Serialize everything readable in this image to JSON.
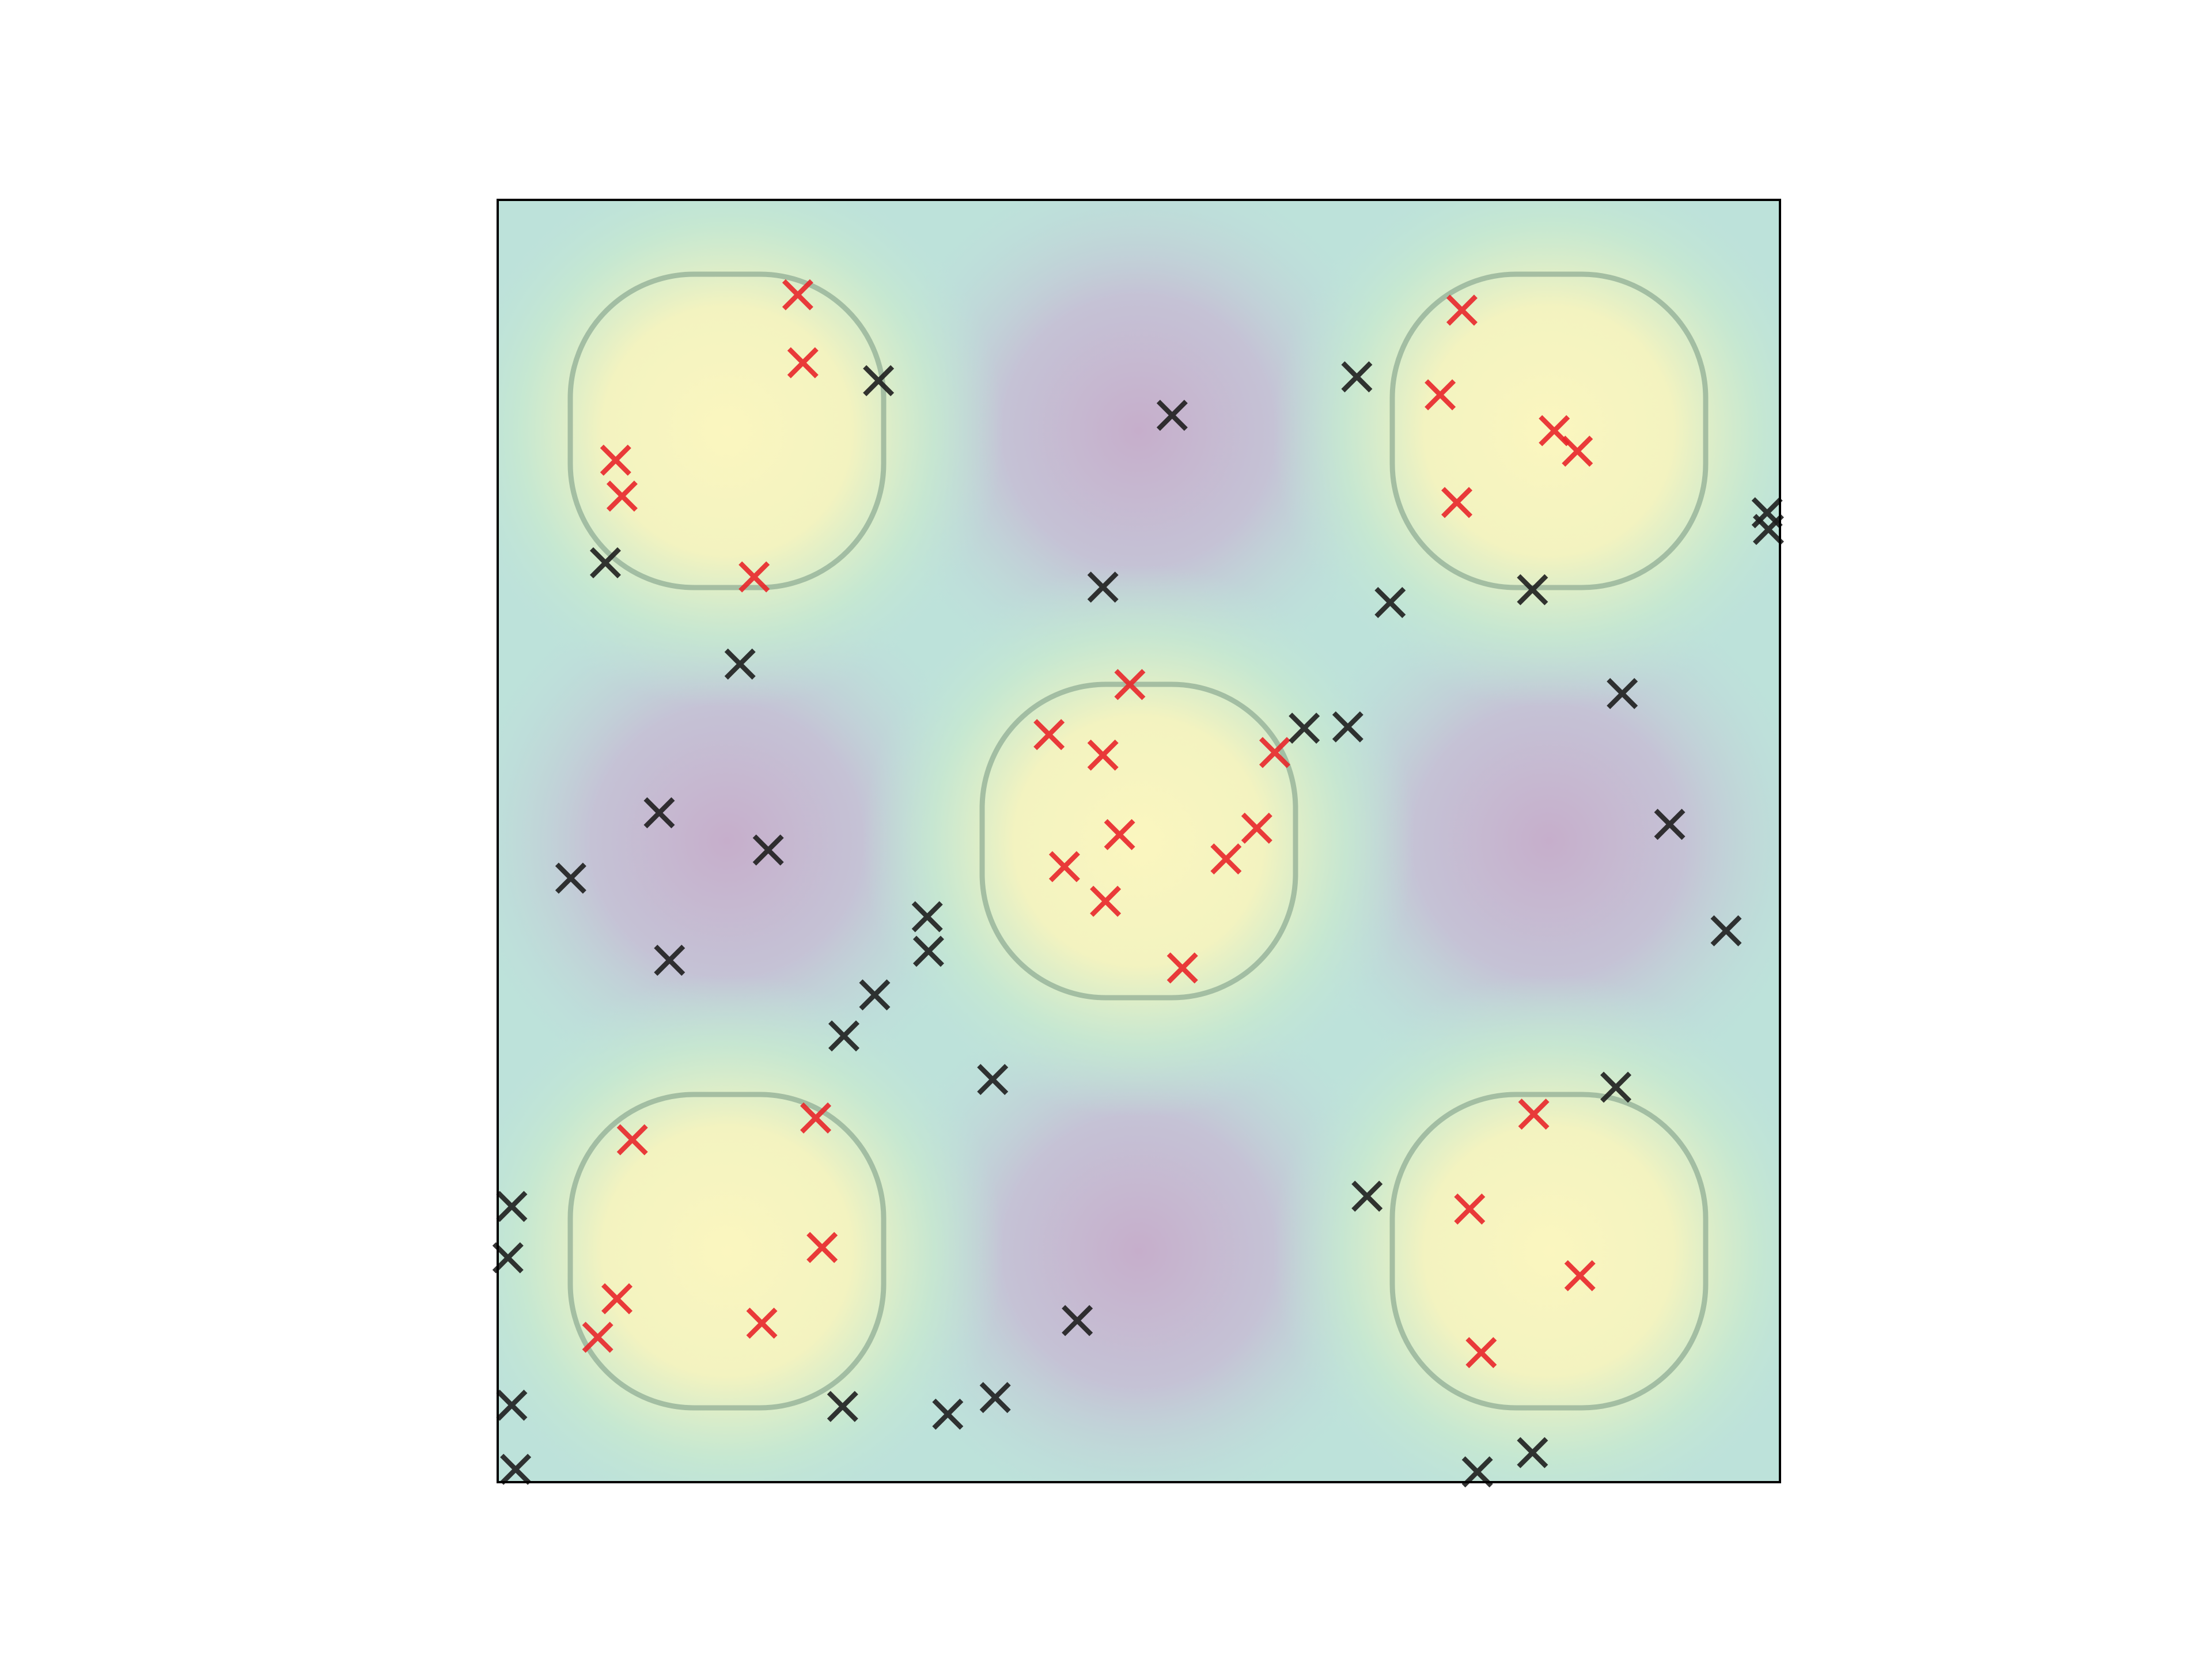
{
  "chart_data": {
    "type": "scatter",
    "xlim": [
      0,
      1
    ],
    "ylim": [
      0,
      1
    ],
    "series": [
      {
        "color": "#e8262a",
        "x": [
          0.234,
          0.238,
          0.092,
          0.097,
          0.2,
          0.752,
          0.735,
          0.824,
          0.842,
          0.748,
          0.493,
          0.43,
          0.472,
          0.606,
          0.485,
          0.592,
          0.442,
          0.568,
          0.474,
          0.534,
          0.105,
          0.248,
          0.253,
          0.093,
          0.078,
          0.206,
          0.808,
          0.758,
          0.844,
          0.767
        ],
        "values": [
          0.926,
          0.873,
          0.797,
          0.769,
          0.706,
          0.914,
          0.848,
          0.82,
          0.804,
          0.764,
          0.622,
          0.583,
          0.567,
          0.569,
          0.505,
          0.51,
          0.48,
          0.486,
          0.453,
          0.401,
          0.267,
          0.284,
          0.183,
          0.143,
          0.113,
          0.124,
          0.287,
          0.213,
          0.161,
          0.101
        ]
      },
      {
        "color": "#1e1e1e",
        "x": [
          0.297,
          0.526,
          0.67,
          0.084,
          0.472,
          0.696,
          0.807,
          0.99,
          0.991,
          0.189,
          0.629,
          0.663,
          0.877,
          0.126,
          0.211,
          0.057,
          0.914,
          0.335,
          0.336,
          0.134,
          0.958,
          0.294,
          0.27,
          0.386,
          0.872,
          0.011,
          0.678,
          0.008,
          0.452,
          0.011,
          0.269,
          0.351,
          0.388,
          0.014,
          0.764,
          0.807
        ],
        "values": [
          0.859,
          0.832,
          0.862,
          0.717,
          0.698,
          0.686,
          0.696,
          0.756,
          0.743,
          0.638,
          0.588,
          0.589,
          0.615,
          0.522,
          0.493,
          0.471,
          0.513,
          0.441,
          0.414,
          0.407,
          0.43,
          0.38,
          0.348,
          0.314,
          0.308,
          0.215,
          0.223,
          0.175,
          0.126,
          0.06,
          0.059,
          0.053,
          0.066,
          0.01,
          0.008,
          0.023
        ]
      }
    ]
  }
}
